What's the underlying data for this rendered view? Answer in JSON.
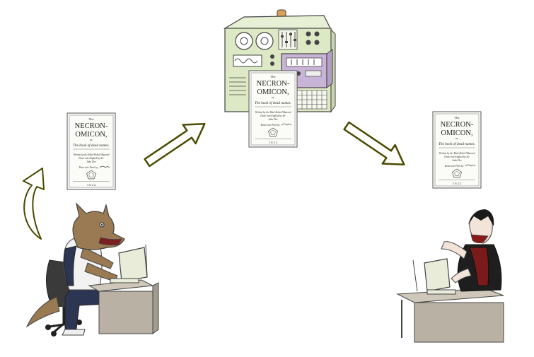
{
  "book": {
    "the": "The",
    "title_line1": "NECRON-",
    "title_line2": "OMICON,",
    "or": "or,",
    "subtitle": "The book of dead names.",
    "byline": "Written by the Mad Abdul Alhazred",
    "translated": "Done into English by Sir",
    "translator": "John Dee",
    "published": "Done into Print by",
    "year": "1 6 2 2"
  },
  "colors": {
    "arrow_stroke": "#4a4a00",
    "arrow_fill": "#ffffff",
    "machine_green": "#dde8c4",
    "machine_purple": "#c8b4d6",
    "werewolf_fur": "#9a7a52",
    "desk": "#b9b2a4"
  },
  "icons": [
    "book-icon",
    "arrow-icon",
    "computer-server-icon",
    "werewolf-user-icon",
    "vampire-user-icon"
  ]
}
